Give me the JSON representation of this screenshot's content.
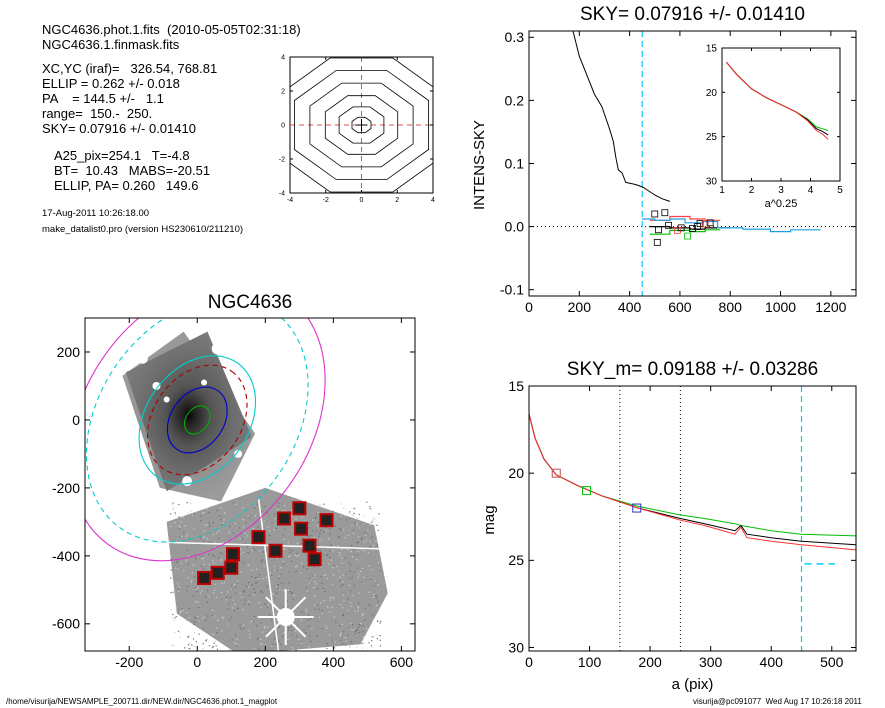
{
  "info": {
    "line1": "NGC4636.phot.1.fits  (2010-05-05T02:31:18)",
    "line2": "NGC4636.1.finmask.fits",
    "line3": "XC,YC (iraf)=   326.54, 768.81",
    "line4": "ELLIP = 0.262 +/- 0.018",
    "line5": "PA    = 144.5 +/-   1.1",
    "line6": "range=  150.-  250.",
    "line7": "SKY= 0.07916 +/- 0.01410",
    "line8": "A25_pix=254.1   T=-4.8",
    "line9": "BT=  10.43   MABS=-20.51",
    "line10": "ELLIP, PA= 0.260   149.6",
    "date": "17-Aug-2011 10:26:18.00",
    "program": "make_datalist0.pro (version HS230610/211210)"
  },
  "footer": {
    "left": "/home/visurija/NEWSAMPLE_200711.dir/NEW.dir/NGC4636.phot.1_magplot",
    "right": "visurija@pc091077  Wed Aug 17 10:26:18 2011"
  },
  "chart_data": [
    {
      "id": "contour",
      "type": "contour",
      "title": "",
      "xlim": [
        -4,
        4
      ],
      "ylim": [
        -4,
        4
      ],
      "xticks": [
        "-4",
        "-2",
        "0",
        "2",
        "4"
      ],
      "yticks": [
        "-4",
        "-2",
        "0",
        "2",
        "4"
      ],
      "levels_radius": [
        0.55,
        1.3,
        2.1,
        3.0,
        3.9,
        4.8
      ],
      "ellipticity": 0.18,
      "pa_deg": 144.5,
      "cross_color": "#e05050"
    },
    {
      "id": "sky",
      "type": "line",
      "title": "SKY= 0.07916 +/- 0.01410",
      "xlabel": "",
      "ylabel": "INTENS-SKY",
      "xlim": [
        0,
        1300
      ],
      "ylim": [
        -0.11,
        0.31
      ],
      "xticks": [
        "0",
        "200",
        "400",
        "600",
        "800",
        "1000",
        "1200"
      ],
      "yticks": [
        "-0.1",
        "0.0",
        "0.1",
        "0.2",
        "0.3"
      ],
      "vline_x": 450,
      "vline_color": "#00ccff",
      "profile": [
        [
          175,
          0.31
        ],
        [
          200,
          0.27
        ],
        [
          230,
          0.24
        ],
        [
          260,
          0.21
        ],
        [
          290,
          0.19
        ],
        [
          320,
          0.155
        ],
        [
          335,
          0.135
        ],
        [
          345,
          0.11
        ],
        [
          355,
          0.09
        ],
        [
          370,
          0.085
        ],
        [
          385,
          0.07
        ],
        [
          410,
          0.068
        ],
        [
          430,
          0.066
        ],
        [
          455,
          0.062
        ],
        [
          470,
          0.058
        ],
        [
          500,
          0.05
        ],
        [
          530,
          0.044
        ],
        [
          560,
          0.04
        ]
      ],
      "steps_cyan": [
        [
          450,
          0.012
        ],
        [
          500,
          0.01
        ],
        [
          560,
          0.012
        ],
        [
          620,
          0.006
        ],
        [
          690,
          0.008
        ],
        [
          750,
          -0.002
        ],
        [
          850,
          -0.004
        ],
        [
          960,
          -0.008
        ],
        [
          1040,
          -0.005
        ],
        [
          1110,
          -0.005
        ]
      ],
      "steps_red": [
        [
          480,
          0.01
        ],
        [
          560,
          0.016
        ],
        [
          640,
          0.012
        ],
        [
          700,
          0.01
        ]
      ],
      "steps_green": [
        [
          480,
          -0.012
        ],
        [
          560,
          -0.006
        ],
        [
          640,
          -0.008
        ],
        [
          700,
          -0.005
        ]
      ],
      "steps_black": [
        [
          480,
          0.0
        ],
        [
          560,
          -0.002
        ],
        [
          640,
          -0.004
        ],
        [
          700,
          -0.002
        ],
        [
          770,
          -0.002
        ]
      ],
      "squares": [
        [
          500,
          0.02
        ],
        [
          510,
          -0.025
        ],
        [
          515,
          -0.005
        ],
        [
          540,
          0.022
        ],
        [
          555,
          0.002
        ],
        [
          590,
          -0.006
        ],
        [
          605,
          -0.002
        ],
        [
          630,
          -0.015
        ],
        [
          650,
          -0.003
        ],
        [
          670,
          0.0
        ],
        [
          680,
          0.005
        ],
        [
          700,
          0.004
        ],
        [
          720,
          0.006
        ]
      ],
      "square_colors": [
        "#000000",
        "#000000",
        "#000000",
        "#000000",
        "#000000",
        "#ff4040",
        "#000000",
        "#00c000",
        "#000000",
        "#000000",
        "#000000",
        "#ff4040",
        "#000000"
      ],
      "inset": {
        "xlabel": "a^0.25",
        "xlim": [
          1,
          5
        ],
        "ylim": [
          15,
          30
        ],
        "xticks": [
          "1",
          "2",
          "3",
          "4",
          "5"
        ],
        "yticks": [
          "15",
          "20",
          "25",
          "30"
        ],
        "series": [
          {
            "color": "#00c000",
            "values": [
              [
                1.15,
                16.6
              ],
              [
                1.5,
                18.0
              ],
              [
                2.0,
                19.6
              ],
              [
                2.5,
                20.6
              ],
              [
                3.0,
                21.4
              ],
              [
                3.5,
                22.2
              ],
              [
                3.9,
                23.0
              ],
              [
                4.2,
                23.9
              ],
              [
                4.4,
                24.1
              ],
              [
                4.6,
                24.3
              ]
            ]
          },
          {
            "color": "#000000",
            "values": [
              [
                1.15,
                16.6
              ],
              [
                1.5,
                18.0
              ],
              [
                2.0,
                19.6
              ],
              [
                2.5,
                20.6
              ],
              [
                3.0,
                21.4
              ],
              [
                3.5,
                22.2
              ],
              [
                3.9,
                23.1
              ],
              [
                4.2,
                24.1
              ],
              [
                4.4,
                24.4
              ],
              [
                4.6,
                24.8
              ]
            ]
          },
          {
            "color": "#ff3030",
            "values": [
              [
                1.15,
                16.6
              ],
              [
                1.5,
                18.0
              ],
              [
                2.0,
                19.6
              ],
              [
                2.5,
                20.6
              ],
              [
                3.0,
                21.4
              ],
              [
                3.5,
                22.2
              ],
              [
                3.9,
                23.2
              ],
              [
                4.2,
                24.3
              ],
              [
                4.4,
                24.7
              ],
              [
                4.6,
                25.3
              ]
            ]
          }
        ]
      }
    },
    {
      "id": "image",
      "type": "image",
      "title": "NGC4636",
      "xlim": [
        -330,
        640
      ],
      "ylim": [
        -680,
        300
      ],
      "xticks": [
        "-200",
        "0",
        "200",
        "400",
        "600"
      ],
      "yticks": [
        "200",
        "0",
        "-200",
        "-400",
        "-600"
      ],
      "ellipses": [
        {
          "a": 45,
          "ellip": 0.262,
          "pa": 144.5,
          "color": "#00b000"
        },
        {
          "a": 105,
          "ellip": 0.262,
          "pa": 144.5,
          "color": "#0000cc"
        },
        {
          "a": 175,
          "ellip": 0.262,
          "pa": 144.5,
          "color": "#aa0000",
          "dash": true
        },
        {
          "a": 205,
          "ellip": 0.262,
          "pa": 144.5,
          "color": "#00cccc"
        },
        {
          "a": 390,
          "ellip": 0.262,
          "pa": 144.5,
          "color": "#00cccc",
          "dash": true
        },
        {
          "a": 450,
          "ellip": 0.262,
          "pa": 144.5,
          "color": "#dd33cc"
        }
      ],
      "boxes": [
        [
          20,
          -465
        ],
        [
          60,
          -450
        ],
        [
          105,
          -395
        ],
        [
          100,
          -435
        ],
        [
          180,
          -345
        ],
        [
          230,
          -385
        ],
        [
          255,
          -290
        ],
        [
          300,
          -260
        ],
        [
          305,
          -320
        ],
        [
          330,
          -370
        ],
        [
          345,
          -410
        ],
        [
          380,
          -295
        ]
      ]
    },
    {
      "id": "mag",
      "type": "line",
      "title": "SKY_m=  0.09188 +/- 0.03286",
      "xlabel": "a (pix)",
      "ylabel": "mag",
      "xlim": [
        0,
        540
      ],
      "ylim": [
        15,
        30.2
      ],
      "xticks": [
        "0",
        "100",
        "200",
        "300",
        "400",
        "500"
      ],
      "yticks": [
        "15",
        "20",
        "25",
        "30"
      ],
      "dotted_x": [
        150,
        250
      ],
      "vline_x": 450,
      "vline_color": "#00ccff",
      "series": [
        {
          "color": "#00c000",
          "values": [
            [
              0,
              16.6
            ],
            [
              10,
              18.0
            ],
            [
              25,
              19.2
            ],
            [
              45,
              20.1
            ],
            [
              80,
              20.7
            ],
            [
              120,
              21.3
            ],
            [
              180,
              21.9
            ],
            [
              250,
              22.4
            ],
            [
              290,
              22.6
            ],
            [
              340,
              22.9
            ],
            [
              350,
              23.0
            ],
            [
              400,
              23.3
            ],
            [
              450,
              23.5
            ],
            [
              540,
              23.6
            ]
          ]
        },
        {
          "color": "#000000",
          "values": [
            [
              0,
              16.6
            ],
            [
              10,
              18.0
            ],
            [
              25,
              19.2
            ],
            [
              45,
              20.1
            ],
            [
              80,
              20.7
            ],
            [
              120,
              21.3
            ],
            [
              180,
              22.0
            ],
            [
              250,
              22.6
            ],
            [
              290,
              22.9
            ],
            [
              340,
              23.3
            ],
            [
              350,
              23.0
            ],
            [
              360,
              23.5
            ],
            [
              400,
              23.7
            ],
            [
              450,
              23.9
            ],
            [
              540,
              24.1
            ]
          ]
        },
        {
          "color": "#ff3030",
          "values": [
            [
              0,
              16.6
            ],
            [
              10,
              18.0
            ],
            [
              25,
              19.2
            ],
            [
              45,
              20.1
            ],
            [
              80,
              20.7
            ],
            [
              120,
              21.3
            ],
            [
              180,
              22.0
            ],
            [
              250,
              22.7
            ],
            [
              290,
              23.0
            ],
            [
              340,
              23.5
            ],
            [
              350,
              23.1
            ],
            [
              360,
              23.7
            ],
            [
              400,
              23.9
            ],
            [
              450,
              24.1
            ],
            [
              540,
              24.4
            ]
          ]
        }
      ],
      "squares": [
        [
          45,
          20.0
        ],
        [
          95,
          21.0
        ],
        [
          178,
          22.0
        ]
      ],
      "square_colors": [
        "#c05050",
        "#00c000",
        "#3030c0"
      ],
      "sky_segment": {
        "x": [
          455,
          505
        ],
        "y": 25.2
      }
    }
  ]
}
